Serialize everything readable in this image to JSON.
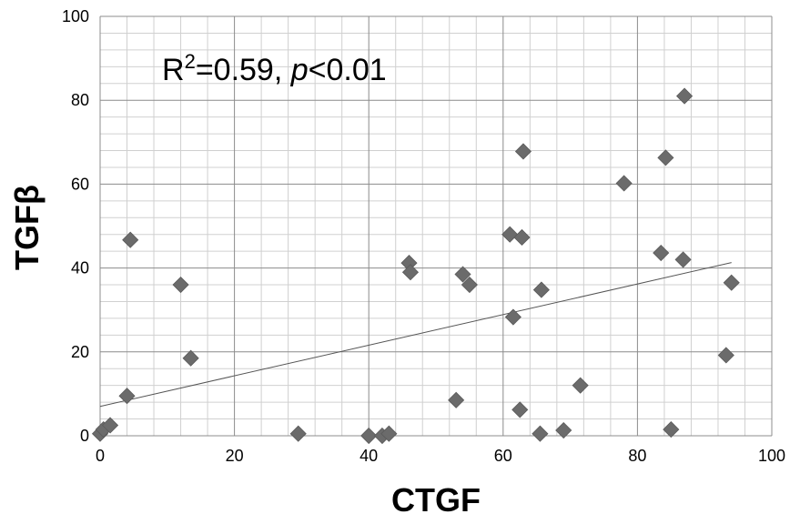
{
  "chart_data": {
    "type": "scatter",
    "title": "",
    "xlabel": "CTGF",
    "ylabel": "TGFβ",
    "xlim": [
      0,
      100
    ],
    "ylim": [
      0,
      100
    ],
    "xticks": [
      0,
      20,
      40,
      60,
      80,
      100
    ],
    "yticks": [
      0,
      20,
      40,
      60,
      80,
      100
    ],
    "grid": true,
    "minor_grid": true,
    "legend": "none",
    "marker": "diamond",
    "marker_color": "#6b6b6b",
    "trendline_color": "#555555",
    "annotation": {
      "r_label": "R",
      "r_sup": "2",
      "r_value": "=0.59, ",
      "p_label": "p",
      "p_value": "<0.01"
    },
    "trendline": {
      "x": [
        0,
        94
      ],
      "y": [
        7.0,
        41.3
      ]
    },
    "points": [
      {
        "x": 0,
        "y": 0.5
      },
      {
        "x": 0.5,
        "y": 1.5
      },
      {
        "x": 1.5,
        "y": 2.5
      },
      {
        "x": 4,
        "y": 9.5
      },
      {
        "x": 4.5,
        "y": 46.7
      },
      {
        "x": 12,
        "y": 36
      },
      {
        "x": 13.5,
        "y": 18.5
      },
      {
        "x": 29.5,
        "y": 0.5
      },
      {
        "x": 40,
        "y": 0
      },
      {
        "x": 42,
        "y": 0
      },
      {
        "x": 43,
        "y": 0.5
      },
      {
        "x": 46,
        "y": 41.2
      },
      {
        "x": 46.2,
        "y": 39
      },
      {
        "x": 53,
        "y": 8.5
      },
      {
        "x": 54,
        "y": 38.5
      },
      {
        "x": 55,
        "y": 36
      },
      {
        "x": 61,
        "y": 48
      },
      {
        "x": 61.5,
        "y": 28.3
      },
      {
        "x": 62.5,
        "y": 6.2
      },
      {
        "x": 62.8,
        "y": 47.3
      },
      {
        "x": 63,
        "y": 67.8
      },
      {
        "x": 65.5,
        "y": 0.5
      },
      {
        "x": 65.7,
        "y": 34.8
      },
      {
        "x": 69,
        "y": 1.3
      },
      {
        "x": 71.5,
        "y": 12
      },
      {
        "x": 78,
        "y": 60.2
      },
      {
        "x": 83.5,
        "y": 43.6
      },
      {
        "x": 84.2,
        "y": 66.3
      },
      {
        "x": 85,
        "y": 1.5
      },
      {
        "x": 86.8,
        "y": 42
      },
      {
        "x": 87,
        "y": 81
      },
      {
        "x": 93.2,
        "y": 19.2
      },
      {
        "x": 94,
        "y": 36.5
      }
    ]
  }
}
